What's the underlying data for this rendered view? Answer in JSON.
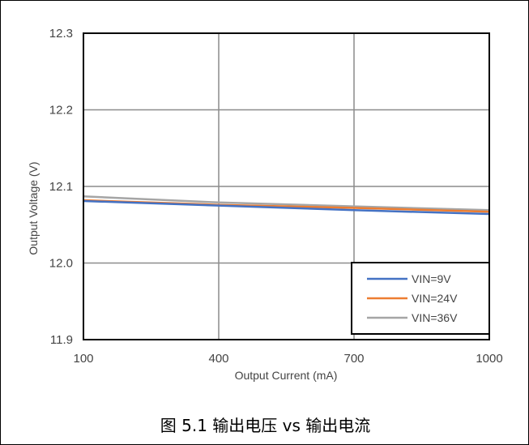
{
  "chart_data": {
    "type": "line",
    "caption": "图 5.1 输出电压 vs 输出电流",
    "xlabel": "Output Current (mA)",
    "ylabel": "Output Voltage (V)",
    "xlim": [
      100,
      1000
    ],
    "ylim": [
      11.9,
      12.3
    ],
    "x_ticks": [
      "100",
      "400",
      "700",
      "1000"
    ],
    "x_tick_values": [
      100,
      400,
      700,
      1000
    ],
    "y_ticks": [
      "11.9",
      "12.0",
      "12.1",
      "12.2",
      "12.3"
    ],
    "y_tick_values": [
      11.9,
      12.0,
      12.1,
      12.2,
      12.3
    ],
    "grid": true,
    "legend_position": "bottom-right",
    "series": [
      {
        "name": "VIN=9V",
        "color": "#4472C4",
        "points": [
          [
            100,
            12.081
          ],
          [
            400,
            12.075
          ],
          [
            700,
            12.069
          ],
          [
            1000,
            12.064
          ]
        ]
      },
      {
        "name": "VIN=24V",
        "color": "#ED7D31",
        "points": [
          [
            100,
            12.082
          ],
          [
            400,
            12.076
          ],
          [
            700,
            12.072
          ],
          [
            1000,
            12.067
          ]
        ]
      },
      {
        "name": "VIN=36V",
        "color": "#A5A5A5",
        "points": [
          [
            100,
            12.087
          ],
          [
            400,
            12.079
          ],
          [
            700,
            12.074
          ],
          [
            1000,
            12.069
          ]
        ]
      }
    ]
  }
}
